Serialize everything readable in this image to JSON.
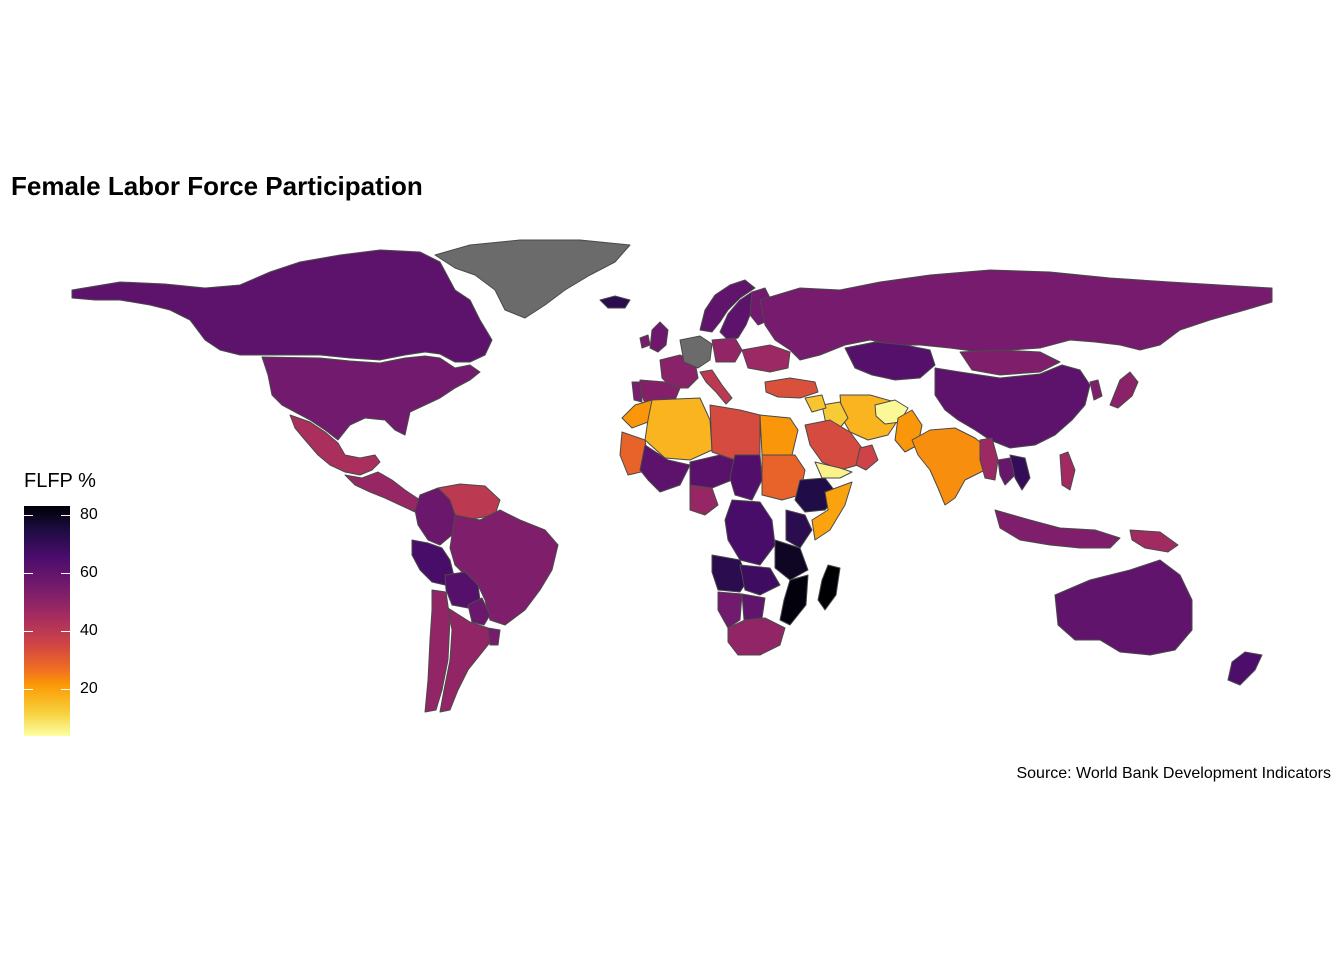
{
  "title": "Female Labor Force Participation",
  "caption": "Source: World Bank Development Indicators",
  "legend": {
    "title": "FLFP %",
    "ticks": [
      80,
      60,
      40,
      20
    ],
    "range": [
      4,
      83
    ],
    "palette": "inferno (reversed: low = pale yellow, high = near black)"
  },
  "colors": {
    "na_fill": "#6b6b6b",
    "border": "#4a4a4a",
    "background": "#ffffff"
  },
  "chart_data": {
    "type": "choropleth",
    "title": "Female Labor Force Participation",
    "legend_title": "FLFP %",
    "legend_ticks": [
      20,
      40,
      60,
      80
    ],
    "range": [
      4,
      83
    ],
    "regions": [
      {
        "name": "Canada",
        "value": 61
      },
      {
        "name": "United States",
        "value": 56
      },
      {
        "name": "Mexico",
        "value": 44
      },
      {
        "name": "Central America",
        "value": 48
      },
      {
        "name": "Venezuela",
        "value": 40
      },
      {
        "name": "Colombia",
        "value": 58
      },
      {
        "name": "Peru",
        "value": 66
      },
      {
        "name": "Brazil",
        "value": 53
      },
      {
        "name": "Bolivia",
        "value": 63
      },
      {
        "name": "Paraguay",
        "value": 58
      },
      {
        "name": "Argentina",
        "value": 49
      },
      {
        "name": "Chile",
        "value": 49
      },
      {
        "name": "Uruguay",
        "value": 55
      },
      {
        "name": "Greenland",
        "value": null
      },
      {
        "name": "Iceland",
        "value": 72
      },
      {
        "name": "Norway",
        "value": 60
      },
      {
        "name": "Sweden",
        "value": 61
      },
      {
        "name": "Finland",
        "value": 56
      },
      {
        "name": "United Kingdom",
        "value": 57
      },
      {
        "name": "Ireland",
        "value": 54
      },
      {
        "name": "France",
        "value": 51
      },
      {
        "name": "Spain",
        "value": 52
      },
      {
        "name": "Portugal",
        "value": 54
      },
      {
        "name": "Germany",
        "value": null
      },
      {
        "name": "Italy",
        "value": 40
      },
      {
        "name": "Poland",
        "value": 49
      },
      {
        "name": "Ukraine",
        "value": 47
      },
      {
        "name": "Russia",
        "value": 55
      },
      {
        "name": "Turkey",
        "value": 33
      },
      {
        "name": "Kazakhstan",
        "value": 63
      },
      {
        "name": "Mongolia",
        "value": 53
      },
      {
        "name": "China",
        "value": 61
      },
      {
        "name": "Japan",
        "value": 51
      },
      {
        "name": "Korea",
        "value": 53
      },
      {
        "name": "Iran",
        "value": 17
      },
      {
        "name": "Iraq",
        "value": 13
      },
      {
        "name": "Syria",
        "value": 14
      },
      {
        "name": "Afghanistan",
        "value": 5
      },
      {
        "name": "Pakistan",
        "value": 22
      },
      {
        "name": "India",
        "value": 23
      },
      {
        "name": "Saudi Arabia",
        "value": 34
      },
      {
        "name": "Oman",
        "value": 36
      },
      {
        "name": "Yemen",
        "value": 6
      },
      {
        "name": "Myanmar",
        "value": 47
      },
      {
        "name": "Thailand",
        "value": 59
      },
      {
        "name": "Vietnam",
        "value": 70
      },
      {
        "name": "Indonesia",
        "value": 53
      },
      {
        "name": "Philippines",
        "value": 46
      },
      {
        "name": "Papua New Guinea",
        "value": 46
      },
      {
        "name": "Australia",
        "value": 60
      },
      {
        "name": "New Zealand",
        "value": 65
      },
      {
        "name": "Morocco",
        "value": 22
      },
      {
        "name": "Algeria",
        "value": 17
      },
      {
        "name": "Libya",
        "value": 34
      },
      {
        "name": "Egypt",
        "value": 22
      },
      {
        "name": "Mauritania",
        "value": 29
      },
      {
        "name": "Mali",
        "value": 61
      },
      {
        "name": "Niger",
        "value": 62
      },
      {
        "name": "Chad",
        "value": 64
      },
      {
        "name": "Sudan",
        "value": 29
      },
      {
        "name": "Ethiopia",
        "value": 74
      },
      {
        "name": "Somalia",
        "value": 20
      },
      {
        "name": "Nigeria",
        "value": 48
      },
      {
        "name": "Kenya",
        "value": 72
      },
      {
        "name": "Tanzania",
        "value": 79
      },
      {
        "name": "DR Congo",
        "value": 66
      },
      {
        "name": "Angola",
        "value": 72
      },
      {
        "name": "Zambia",
        "value": 68
      },
      {
        "name": "Mozambique",
        "value": 82
      },
      {
        "name": "Madagascar",
        "value": 83
      },
      {
        "name": "Namibia",
        "value": 56
      },
      {
        "name": "Botswana",
        "value": 60
      },
      {
        "name": "South Africa",
        "value": 49
      }
    ]
  }
}
